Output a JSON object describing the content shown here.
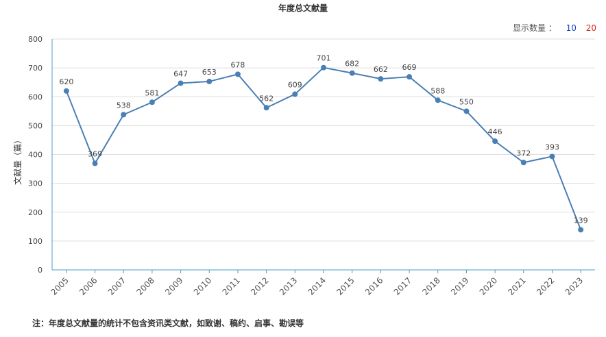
{
  "header": {
    "title": "年度总文献量",
    "display_label": "显示数量 ：",
    "options": [
      "10",
      "20"
    ]
  },
  "footnote": "注：年度总文献量的统计不包含资讯类文献，如致谢、稿约、启事、勘误等",
  "colors": {
    "line": "#4a7fb5",
    "grid": "#dddddd",
    "axis": "#4a9cc7",
    "option_10": "#1a3ec8",
    "option_20": "#d0281c"
  },
  "chart_data": {
    "type": "line",
    "title": "年度总文献量",
    "xlabel": "",
    "ylabel": "文献量（篇）",
    "ylim": [
      0,
      800
    ],
    "yticks": [
      0,
      100,
      200,
      300,
      400,
      500,
      600,
      700,
      800
    ],
    "grid": true,
    "categories": [
      "2005",
      "2006",
      "2007",
      "2008",
      "2009",
      "2010",
      "2011",
      "2012",
      "2013",
      "2014",
      "2015",
      "2016",
      "2017",
      "2018",
      "2019",
      "2020",
      "2021",
      "2022",
      "2023"
    ],
    "values": [
      620,
      369,
      538,
      581,
      647,
      653,
      678,
      562,
      609,
      701,
      682,
      662,
      669,
      588,
      550,
      446,
      372,
      393,
      139
    ]
  }
}
